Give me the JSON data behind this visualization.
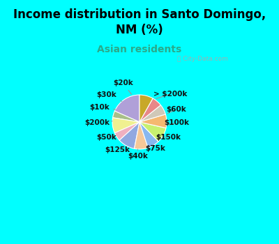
{
  "title": "Income distribution in Santo Domingo,\nNM (%)",
  "subtitle": "Asian residents",
  "bg_color": "#00FFFF",
  "chart_bg_color": "#ddf0e8",
  "watermark": "ⓘ City-Data.com",
  "labels": [
    "> $200k",
    "$60k",
    "$100k",
    "$150k",
    "$75k",
    "$40k",
    "$125k",
    "$50k",
    "$200k",
    "$10k",
    "$30k",
    "$20k"
  ],
  "values": [
    18,
    4,
    9,
    5,
    10,
    8,
    7,
    9,
    8,
    6,
    6,
    8
  ],
  "colors": [
    "#b0a0d8",
    "#a8bf88",
    "#f0f090",
    "#f0b0c0",
    "#90a8e0",
    "#f5c898",
    "#88b8f0",
    "#c8f070",
    "#f5b870",
    "#d0c8b8",
    "#e88888",
    "#c8a828"
  ],
  "startangle": 90,
  "title_fontsize": 12,
  "subtitle_fontsize": 10,
  "label_fontsize": 7.5,
  "border_width": 6
}
